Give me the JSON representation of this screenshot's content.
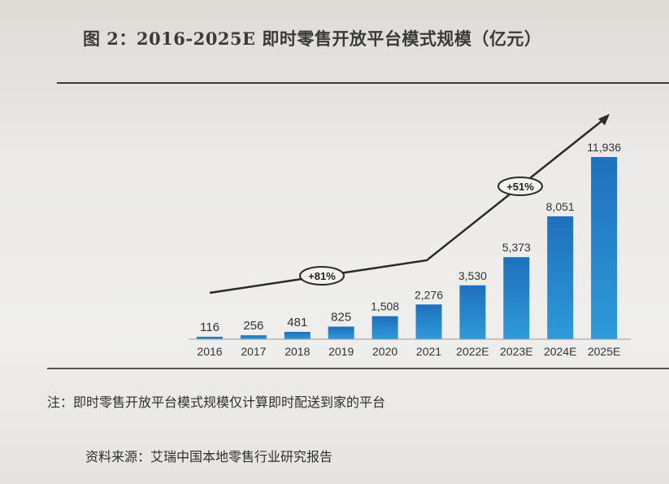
{
  "title": "图 2：2016-2025E 即时零售开放平台模式规模（亿元）",
  "note": "注：即时零售开放平台模式规模仅计算即时配送到家的平台",
  "source": "资料来源：艾瑞中国本地零售行业研究报告",
  "colors": {
    "bar_dark": "#1f6fbd",
    "bar_light": "#2e9bd8",
    "trend_line": "#2b2b2b"
  },
  "chart_data": {
    "type": "bar",
    "categories": [
      "2016",
      "2017",
      "2018",
      "2019",
      "2020",
      "2021",
      "2022E",
      "2023E",
      "2024E",
      "2025E"
    ],
    "values": [
      116,
      256,
      481,
      825,
      1508,
      2276,
      3530,
      5373,
      8051,
      11936
    ],
    "value_labels": [
      "116",
      "256",
      "481",
      "825",
      "1,508",
      "2,276",
      "3,530",
      "5,373",
      "8,051",
      "11,936"
    ],
    "annotations": [
      "+81%",
      "+51%"
    ],
    "ylim": [
      0,
      12000
    ]
  }
}
